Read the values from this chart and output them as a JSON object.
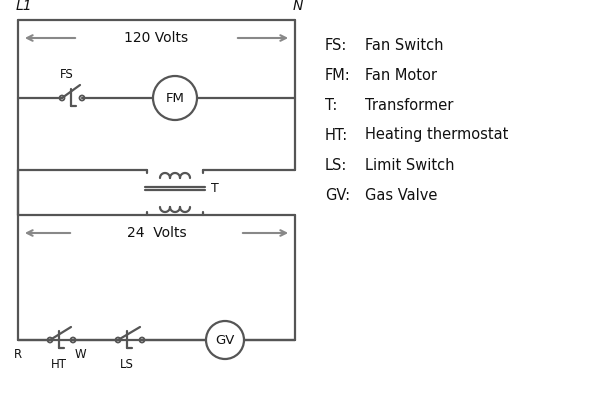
{
  "legend": [
    [
      "FS:",
      "Fan Switch"
    ],
    [
      "FM:",
      "Fan Motor"
    ],
    [
      "T:",
      "Transformer"
    ],
    [
      "HT:",
      "Heating thermostat"
    ],
    [
      "LS:",
      "Limit Switch"
    ],
    [
      "GV:",
      "Gas Valve"
    ]
  ],
  "line_color": "#555555",
  "arrow_color": "#888888",
  "bg_color": "#ffffff",
  "text_color": "#111111",
  "label_L1": "L1",
  "label_N": "N",
  "label_120V": "120 Volts",
  "label_24V": "24  Volts",
  "label_T": "T",
  "label_FS": "FS",
  "label_FM": "FM",
  "label_GV": "GV",
  "label_R": "R",
  "label_W": "W",
  "label_HT": "HT",
  "label_LS": "LS"
}
